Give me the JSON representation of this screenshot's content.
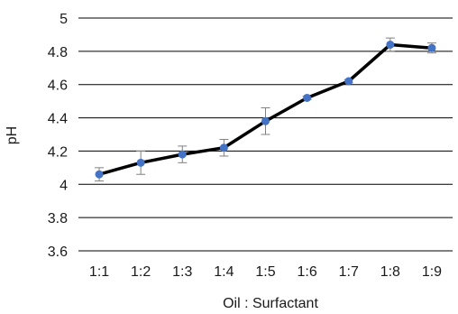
{
  "chart_data": {
    "type": "line",
    "title": "",
    "xlabel": "Oil : Surfactant",
    "ylabel": "pH",
    "categories": [
      "1:1",
      "1:2",
      "1:3",
      "1:4",
      "1:5",
      "1:6",
      "1:7",
      "1:8",
      "1:9"
    ],
    "series": [
      {
        "values": [
          4.06,
          4.13,
          4.18,
          4.22,
          4.38,
          4.52,
          4.62,
          4.84,
          4.82
        ],
        "error": [
          0.04,
          0.07,
          0.05,
          0.05,
          0.08,
          0.01,
          0.01,
          0.04,
          0.03
        ]
      }
    ],
    "ylim": [
      3.6,
      5.0
    ],
    "yticks": [
      3.6,
      3.8,
      4,
      4.2,
      4.4,
      4.6,
      4.8,
      5
    ],
    "ytick_labels": [
      "3.6",
      "3.8",
      "4",
      "4.2",
      "4.4",
      "4.6",
      "4.8",
      "5"
    ],
    "grid": true,
    "legend": "none",
    "colors": {
      "line": "#000000",
      "marker": "#4472c4",
      "error_bar": "#808080",
      "grid": "#000000"
    }
  }
}
